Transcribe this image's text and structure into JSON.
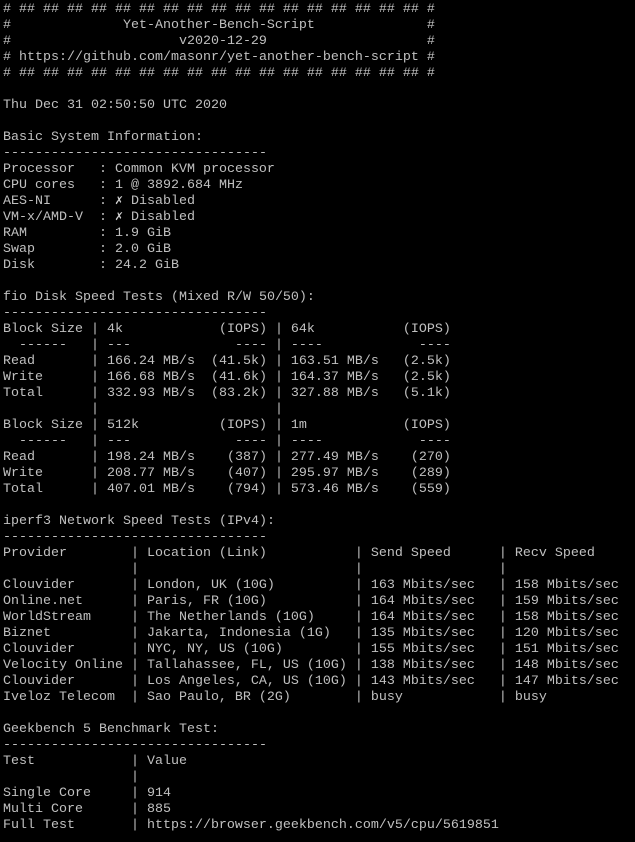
{
  "theme": {
    "background": "#000000",
    "foreground": "#c0c0c0"
  },
  "header": {
    "border_line": "# ## ## ## ## ## ## ## ## ## ## ## ## ## ## ## ## ## #",
    "edge": "#",
    "title": "Yet-Another-Bench-Script",
    "version": "v2020-12-29",
    "url_line": "# https://github.com/masonr/yet-another-bench-script #"
  },
  "date": "Thu Dec 31 02:50:50 UTC 2020",
  "separator": "---------------------------------",
  "system": {
    "title": "Basic System Information:",
    "items": [
      {
        "label": "Processor",
        "value": "Common KVM processor"
      },
      {
        "label": "CPU cores",
        "value": "1 @ 3892.684 MHz"
      },
      {
        "label": "AES-NI",
        "icon": "cross-mark-icon",
        "mark": "✗",
        "value": "Disabled"
      },
      {
        "label": "VM-x/AMD-V",
        "icon": "cross-mark-icon",
        "mark": "✗",
        "value": "Disabled"
      },
      {
        "label": "RAM",
        "value": "1.9 GiB"
      },
      {
        "label": "Swap",
        "value": "2.0 GiB"
      },
      {
        "label": "Disk",
        "value": "24.2 GiB"
      }
    ],
    "colon": ":"
  },
  "fio": {
    "title": "fio Disk Speed Tests (Mixed R/W 50/50):",
    "pipe": "|",
    "header_label": "Block Size",
    "iops_label": "(IOPS)",
    "dash_label": "------",
    "dash_short": "---",
    "dash_iops": "----",
    "dash_long": "----",
    "blocks": [
      {
        "sizes": [
          "4k",
          "64k"
        ],
        "rows": [
          {
            "label": "Read",
            "cells": [
              {
                "speed": "166.24 MB/s",
                "iops": "(41.5k)"
              },
              {
                "speed": "163.51 MB/s",
                "iops": "(2.5k)"
              }
            ]
          },
          {
            "label": "Write",
            "cells": [
              {
                "speed": "166.68 MB/s",
                "iops": "(41.6k)"
              },
              {
                "speed": "164.37 MB/s",
                "iops": "(2.5k)"
              }
            ]
          },
          {
            "label": "Total",
            "cells": [
              {
                "speed": "332.93 MB/s",
                "iops": "(83.2k)"
              },
              {
                "speed": "327.88 MB/s",
                "iops": "(5.1k)"
              }
            ]
          }
        ]
      },
      {
        "sizes": [
          "512k",
          "1m"
        ],
        "rows": [
          {
            "label": "Read",
            "cells": [
              {
                "speed": "198.24 MB/s",
                "iops": "(387)"
              },
              {
                "speed": "277.49 MB/s",
                "iops": "(270)"
              }
            ]
          },
          {
            "label": "Write",
            "cells": [
              {
                "speed": "208.77 MB/s",
                "iops": "(407)"
              },
              {
                "speed": "295.97 MB/s",
                "iops": "(289)"
              }
            ]
          },
          {
            "label": "Total",
            "cells": [
              {
                "speed": "407.01 MB/s",
                "iops": "(794)"
              },
              {
                "speed": "573.46 MB/s",
                "iops": "(559)"
              }
            ]
          }
        ]
      }
    ]
  },
  "iperf": {
    "title": "iperf3 Network Speed Tests (IPv4):",
    "columns": [
      "Provider",
      "Location (Link)",
      "Send Speed",
      "Recv Speed"
    ],
    "rows": [
      [
        "Clouvider",
        "London, UK (10G)",
        "163 Mbits/sec",
        "158 Mbits/sec"
      ],
      [
        "Online.net",
        "Paris, FR (10G)",
        "164 Mbits/sec",
        "159 Mbits/sec"
      ],
      [
        "WorldStream",
        "The Netherlands (10G)",
        "164 Mbits/sec",
        "158 Mbits/sec"
      ],
      [
        "Biznet",
        "Jakarta, Indonesia (1G)",
        "135 Mbits/sec",
        "120 Mbits/sec"
      ],
      [
        "Clouvider",
        "NYC, NY, US (10G)",
        "155 Mbits/sec",
        "151 Mbits/sec"
      ],
      [
        "Velocity Online",
        "Tallahassee, FL, US (10G)",
        "138 Mbits/sec",
        "148 Mbits/sec"
      ],
      [
        "Clouvider",
        "Los Angeles, CA, US (10G)",
        "143 Mbits/sec",
        "147 Mbits/sec"
      ],
      [
        "Iveloz Telecom",
        "Sao Paulo, BR (2G)",
        "busy",
        "busy"
      ]
    ]
  },
  "geekbench": {
    "title": "Geekbench 5 Benchmark Test:",
    "columns": [
      "Test",
      "Value"
    ],
    "rows": [
      [
        "Single Core",
        "914"
      ],
      [
        "Multi Core",
        "885"
      ],
      [
        "Full Test",
        "https://browser.geekbench.com/v5/cpu/5619851"
      ]
    ]
  }
}
